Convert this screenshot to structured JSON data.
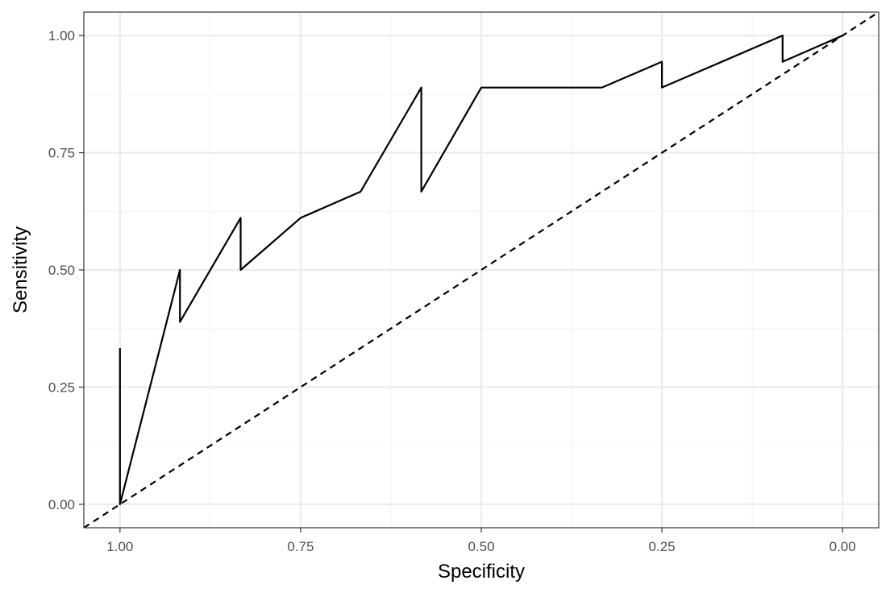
{
  "chart_data": {
    "type": "line",
    "title": "",
    "xlabel": "Specificity",
    "ylabel": "Sensitivity",
    "x_reversed": true,
    "xlim": [
      1.05,
      -0.05
    ],
    "ylim": [
      -0.05,
      1.05
    ],
    "grid": true,
    "legend": "none",
    "x_ticks": [
      1.0,
      0.75,
      0.5,
      0.25,
      0.0
    ],
    "x_tick_labels": [
      "1.00",
      "0.75",
      "0.50",
      "0.25",
      "0.00"
    ],
    "y_ticks": [
      0.0,
      0.25,
      0.5,
      0.75,
      1.0
    ],
    "y_tick_labels": [
      "0.00",
      "0.25",
      "0.50",
      "0.75",
      "1.00"
    ],
    "series": [
      {
        "style": "solid",
        "color": "#000000",
        "points": [
          {
            "x": 1.0,
            "y": 0.333
          },
          {
            "x": 1.0,
            "y": 0.0
          },
          {
            "x": 0.917,
            "y": 0.5
          },
          {
            "x": 0.917,
            "y": 0.389
          },
          {
            "x": 0.833,
            "y": 0.611
          },
          {
            "x": 0.833,
            "y": 0.5
          },
          {
            "x": 0.75,
            "y": 0.611
          },
          {
            "x": 0.667,
            "y": 0.667
          },
          {
            "x": 0.583,
            "y": 0.889
          },
          {
            "x": 0.583,
            "y": 0.667
          },
          {
            "x": 0.5,
            "y": 0.889
          },
          {
            "x": 0.333,
            "y": 0.889
          },
          {
            "x": 0.25,
            "y": 0.944
          },
          {
            "x": 0.25,
            "y": 0.889
          },
          {
            "x": 0.083,
            "y": 1.0
          },
          {
            "x": 0.083,
            "y": 0.944
          },
          {
            "x": 0.0,
            "y": 1.0
          }
        ]
      },
      {
        "style": "dashed",
        "color": "#000000",
        "points": [
          {
            "x": 1.05,
            "y": -0.05
          },
          {
            "x": -0.05,
            "y": 1.05
          }
        ]
      }
    ]
  },
  "colors": {
    "background": "#ffffff",
    "grid_major": "#ebebeb",
    "grid_minor": "#f5f5f5",
    "panel_border": "#333333",
    "line": "#000000"
  }
}
